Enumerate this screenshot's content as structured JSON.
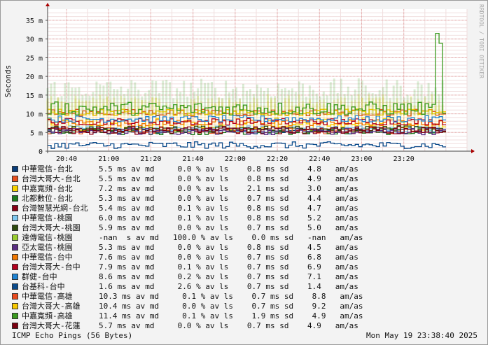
{
  "chart_data": {
    "type": "line",
    "watermark": "RRDTOOL / TOBI OETIKER",
    "ylabel": "Seconds",
    "ylim": [
      0,
      0.038
    ],
    "y_ticks": [
      {
        "value": 0,
        "label": "0"
      },
      {
        "value": 0.005,
        "label": "5 m"
      },
      {
        "value": 0.01,
        "label": "10 m"
      },
      {
        "value": 0.015,
        "label": "15 m"
      },
      {
        "value": 0.02,
        "label": "20 m"
      },
      {
        "value": 0.025,
        "label": "25 m"
      },
      {
        "value": 0.03,
        "label": "30 m"
      },
      {
        "value": 0.035,
        "label": "35 m"
      }
    ],
    "x_range": [
      "20:31",
      "23:50"
    ],
    "x_ticks": [
      "20:40",
      "21:00",
      "21:20",
      "21:40",
      "22:00",
      "22:20",
      "22:40",
      "23:00",
      "23:20"
    ],
    "grid": true,
    "series": [
      {
        "name": "中華電信-台北",
        "color": "#0a3d7a",
        "stats": "5.5 ms av md     0.0 % av ls    0.8 ms sd    4.8   am/as"
      },
      {
        "name": "台灣大哥大-台北",
        "color": "#e8501e",
        "stats": "5.5 ms av md     0.0 % av ls    0.8 ms sd    4.9   am/as"
      },
      {
        "name": "中嘉寬頻-台北",
        "color": "#f7d200",
        "stats": "7.2 ms av md     0.0 % av ls    2.1 ms sd    3.0   am/as"
      },
      {
        "name": "北都數位-台北",
        "color": "#1e7a1e",
        "stats": "5.3 ms av md     0.0 % av ls    0.7 ms sd    4.4   am/as"
      },
      {
        "name": "台灣智慧光網-台北",
        "color": "#8a0016",
        "stats": "5.4 ms av md     0.1 % av ls    0.8 ms sd    4.7   am/as"
      },
      {
        "name": "中華電信-桃園",
        "color": "#7fc8f0",
        "stats": "6.0 ms av md     0.1 % av ls    0.8 ms sd    5.2   am/as"
      },
      {
        "name": "台灣大哥大-桃園",
        "color": "#2d4a0e",
        "stats": "5.9 ms av md     0.0 % av ls    0.7 ms sd    5.0   am/as"
      },
      {
        "name": "遠傳電信-桃園",
        "color": "#9acd32",
        "stats": "-nan  s av md   100.0 % av ls    0.0 ms sd   -nan   am/as"
      },
      {
        "name": "亞太電信-桃園",
        "color": "#5a2d82",
        "stats": "5.3 ms av md     0.0 % av ls    0.8 ms sd    4.5   am/as"
      },
      {
        "name": "中華電信-台中",
        "color": "#f07800",
        "stats": "7.6 ms av md     0.0 % av ls    0.7 ms sd    6.8   am/as"
      },
      {
        "name": "台灣大哥大-台中",
        "color": "#b4001e",
        "stats": "7.9 ms av md     0.1 % av ls    0.7 ms sd    6.9   am/as"
      },
      {
        "name": "群健-台中",
        "color": "#1e82d2",
        "stats": "8.6 ms av md     0.2 % av ls    0.7 ms sd    7.1   am/as"
      },
      {
        "name": "台基科-台中",
        "color": "#0a4a8a",
        "stats": "1.6 ms av md     2.6 % av ls    0.7 ms sd    1.4   am/as"
      },
      {
        "name": "中華電信-高雄",
        "color": "#e84a1e",
        "stats": "10.3 ms av md     0.1 % av ls    0.7 ms sd    8.8   am/as"
      },
      {
        "name": "台灣大哥大-高雄",
        "color": "#f7c800",
        "stats": "10.4 ms av md     0.0 % av ls    0.7 ms sd    9.2   am/as"
      },
      {
        "name": "中嘉寬頻-高雄",
        "color": "#3a9a1e",
        "stats": "11.4 ms av md     0.1 % av ls    1.9 ms sd    4.9   am/as"
      },
      {
        "name": "台灣大哥大-花蓮",
        "color": "#7a0010",
        "stats": "5.7 ms av md     0.0 % av ls    0.7 ms sd    4.9   am/as"
      }
    ]
  },
  "footer": {
    "left": "ICMP Echo Pings (56 Bytes)",
    "right": "Mon May 19 23:38:40 2025"
  }
}
